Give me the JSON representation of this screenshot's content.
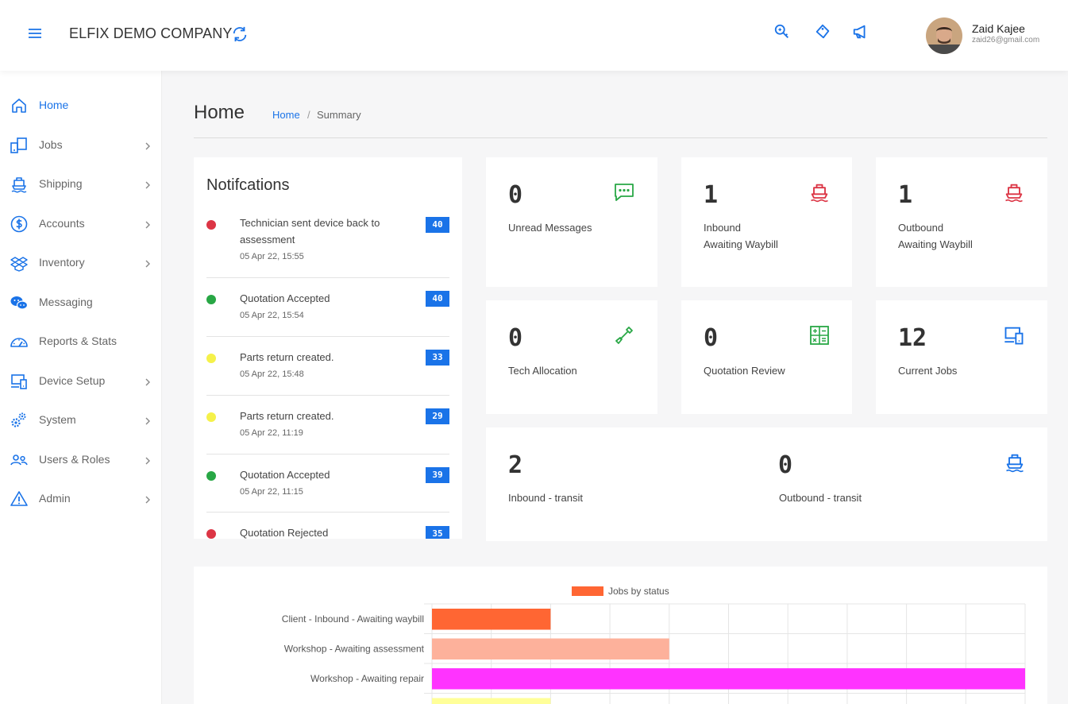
{
  "header": {
    "company": "ELFIX DEMO COMPANY",
    "user_name": "Zaid Kajee",
    "user_email": "zaid26@gmail.com"
  },
  "sidebar": {
    "items": [
      {
        "label": "Home",
        "icon": "home-icon"
      },
      {
        "label": "Jobs",
        "icon": "jobs-icon"
      },
      {
        "label": "Shipping",
        "icon": "ship-icon"
      },
      {
        "label": "Accounts",
        "icon": "dollar-icon"
      },
      {
        "label": "Inventory",
        "icon": "boxes-icon"
      },
      {
        "label": "Messaging",
        "icon": "chat-icon"
      },
      {
        "label": "Reports & Stats",
        "icon": "gauge-icon"
      },
      {
        "label": "Device Setup",
        "icon": "devices-icon"
      },
      {
        "label": "System",
        "icon": "gears-icon"
      },
      {
        "label": "Users & Roles",
        "icon": "users-icon"
      },
      {
        "label": "Admin",
        "icon": "warning-icon"
      }
    ]
  },
  "page": {
    "title": "Home",
    "breadcrumb_home": "Home",
    "breadcrumb_sep": "/",
    "breadcrumb_current": "Summary"
  },
  "notifications": {
    "title": "Notifcations",
    "items": [
      {
        "text": "Technician sent device back to assessment",
        "time": "05 Apr 22, 15:55",
        "badge": "40",
        "color": "#dc3545"
      },
      {
        "text": "Quotation Accepted",
        "time": "05 Apr 22, 15:54",
        "badge": "40",
        "color": "#28a745"
      },
      {
        "text": "Parts return created.",
        "time": "05 Apr 22, 15:48",
        "badge": "33",
        "color": "#f5f14a"
      },
      {
        "text": "Parts return created.",
        "time": "05 Apr 22, 11:19",
        "badge": "29",
        "color": "#f5f14a"
      },
      {
        "text": "Quotation Accepted",
        "time": "05 Apr 22, 11:15",
        "badge": "39",
        "color": "#28a745"
      },
      {
        "text": "Quotation Rejected",
        "time": "",
        "badge": "35",
        "color": "#dc3545"
      }
    ]
  },
  "stats": {
    "unread": {
      "value": "0",
      "label": "Unread Messages",
      "icon": "message-icon",
      "color": "#28a745"
    },
    "inbound_waybill": {
      "value": "1",
      "label": "Inbound\nAwaiting Waybill",
      "icon": "ship-icon",
      "color": "#dc3545"
    },
    "outbound_waybill": {
      "value": "1",
      "label": "Outbound\nAwaiting Waybill",
      "icon": "ship-icon",
      "color": "#dc3545"
    },
    "tech_allocation": {
      "value": "0",
      "label": "Tech Allocation",
      "icon": "screwdriver-icon",
      "color": "#28a745"
    },
    "quotation_review": {
      "value": "0",
      "label": "Quotation Review",
      "icon": "calculator-icon",
      "color": "#28a745"
    },
    "current_jobs": {
      "value": "12",
      "label": "Current Jobs",
      "icon": "devices-icon",
      "color": "#1a73e8"
    },
    "inbound_transit": {
      "value": "2",
      "label": "Inbound - transit"
    },
    "outbound_transit": {
      "value": "0",
      "label": "Outbound - transit",
      "icon": "ship-icon",
      "color": "#1a73e8"
    }
  },
  "chart_data": {
    "type": "bar",
    "orientation": "horizontal",
    "series": [
      {
        "name": "Jobs by status"
      }
    ],
    "categories": [
      "Client - Inbound - Awaiting waybill",
      "Workshop - Awaiting assessment",
      "Workshop - Awaiting repair"
    ],
    "values": [
      1,
      2,
      5
    ],
    "colors": [
      "#ff6633",
      "#fdb19b",
      "#ff33ff",
      "#ffff99"
    ],
    "grid": true
  }
}
